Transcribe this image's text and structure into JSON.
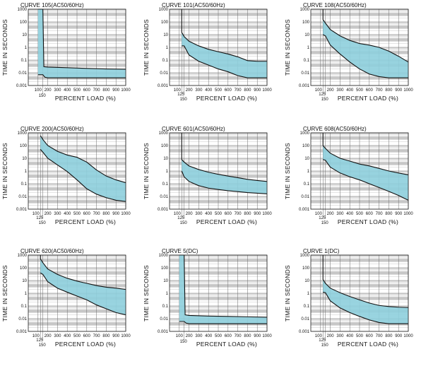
{
  "axes": {
    "ylabel": "TIME  IN  SECONDS",
    "xlabel": "PERCENT   LOAD   (%)",
    "y_ticks": [
      "1000",
      "100",
      "10",
      "1",
      "0.1",
      "0.01",
      "0.001"
    ],
    "x_ticks": [
      "100",
      "200",
      "300",
      "400",
      "500",
      "600",
      "700",
      "800",
      "900",
      "1000"
    ],
    "x_extra_125": "125",
    "x_extra_150": "150"
  },
  "chart_data": [
    {
      "type": "area",
      "title": "CURVE   105(AC50/60Hz)",
      "x_scale": "linear",
      "y_scale": "log",
      "xlim": [
        0,
        1000
      ],
      "ylim": [
        0.001,
        1000
      ],
      "series": [
        {
          "x": [
            100,
            150,
            160,
            200,
            400,
            600,
            800,
            1000
          ],
          "values": [
            1000,
            1000,
            0.03,
            0.028,
            0.025,
            0.022,
            0.02,
            0.019
          ]
        },
        {
          "x": [
            100,
            150,
            170,
            200,
            400,
            600,
            800,
            1000
          ],
          "values": [
            0.007,
            0.007,
            0.0045,
            0.004,
            0.004,
            0.004,
            0.004,
            0.004
          ]
        }
      ],
      "x_ticks_shown": [
        "100",
        "200",
        "300",
        "400",
        "500",
        "600",
        "700",
        "800",
        "900",
        "1000"
      ],
      "x_extra_ticks": [
        "150"
      ]
    },
    {
      "type": "area",
      "title": "CURVE   101(AC50/60Hz)",
      "x_scale": "linear",
      "y_scale": "log",
      "xlim": [
        0,
        1000
      ],
      "ylim": [
        0.001,
        1000
      ],
      "series": [
        {
          "x": [
            125,
            125,
            150,
            200,
            300,
            400,
            500,
            600,
            700,
            800,
            900,
            1000
          ],
          "values": [
            1000,
            15,
            7,
            3,
            1.3,
            0.7,
            0.45,
            0.3,
            0.18,
            0.09,
            0.08,
            0.08
          ]
        },
        {
          "x": [
            125,
            150,
            200,
            300,
            400,
            500,
            600,
            700,
            800,
            900,
            1000
          ],
          "values": [
            1.3,
            1.3,
            0.25,
            0.08,
            0.04,
            0.02,
            0.012,
            0.006,
            0.004,
            0.004,
            0.004
          ]
        }
      ],
      "x_ticks_shown": [
        "100",
        "200",
        "300",
        "400",
        "500",
        "600",
        "700",
        "800",
        "900",
        "1000"
      ],
      "x_extra_ticks": [
        "125",
        "150"
      ]
    },
    {
      "type": "area",
      "title": "CURVE   108(AC50/60Hz)",
      "x_scale": "linear",
      "y_scale": "log",
      "xlim": [
        0,
        1000
      ],
      "ylim": [
        0.001,
        1000
      ],
      "series": [
        {
          "x": [
            125,
            125,
            150,
            200,
            300,
            400,
            500,
            600,
            700,
            800,
            900,
            1000
          ],
          "values": [
            1000,
            150,
            80,
            25,
            8,
            3.5,
            2,
            1.5,
            1,
            0.5,
            0.2,
            0.07
          ]
        },
        {
          "x": [
            125,
            150,
            200,
            300,
            400,
            500,
            600,
            700,
            800,
            900,
            1000
          ],
          "values": [
            10,
            8,
            1.5,
            0.3,
            0.07,
            0.02,
            0.008,
            0.005,
            0.004,
            0.004,
            0.004
          ]
        }
      ],
      "x_ticks_shown": [
        "100",
        "200",
        "300",
        "400",
        "500",
        "600",
        "700",
        "800",
        "900",
        "1000"
      ],
      "x_extra_ticks": [
        "125",
        "150"
      ]
    },
    {
      "type": "area",
      "title": "CURVE   200(AC50/60Hz)",
      "x_scale": "linear",
      "y_scale": "log",
      "xlim": [
        0,
        1000
      ],
      "ylim": [
        0.001,
        1000
      ],
      "series": [
        {
          "x": [
            125,
            150,
            200,
            300,
            400,
            500,
            600,
            700,
            800,
            900,
            1000
          ],
          "values": [
            600,
            300,
            100,
            35,
            18,
            12,
            5,
            1.2,
            0.4,
            0.2,
            0.12
          ]
        },
        {
          "x": [
            125,
            150,
            200,
            300,
            400,
            500,
            600,
            700,
            800,
            900,
            1000
          ],
          "values": [
            50,
            30,
            10,
            3,
            0.9,
            0.2,
            0.04,
            0.015,
            0.008,
            0.005,
            0.004
          ]
        }
      ],
      "x_ticks_shown": [
        "100",
        "200",
        "300",
        "400",
        "500",
        "600",
        "700",
        "800",
        "900",
        "1000"
      ],
      "x_extra_ticks": [
        "125",
        "150"
      ]
    },
    {
      "type": "area",
      "title": "CURVE   601(AC50/60Hz)",
      "x_scale": "linear",
      "y_scale": "log",
      "xlim": [
        0,
        1000
      ],
      "ylim": [
        0.001,
        1000
      ],
      "series": [
        {
          "x": [
            125,
            125,
            150,
            200,
            300,
            400,
            500,
            600,
            700,
            800,
            900,
            1000
          ],
          "values": [
            1000,
            8,
            5,
            2.5,
            1.3,
            0.8,
            0.55,
            0.4,
            0.3,
            0.22,
            0.18,
            0.15
          ]
        },
        {
          "x": [
            125,
            150,
            200,
            300,
            400,
            500,
            600,
            700,
            800,
            900,
            1000
          ],
          "values": [
            1,
            0.35,
            0.15,
            0.07,
            0.045,
            0.035,
            0.028,
            0.024,
            0.02,
            0.018,
            0.016
          ]
        }
      ],
      "x_ticks_shown": [
        "100",
        "200",
        "300",
        "400",
        "500",
        "600",
        "700",
        "800",
        "900",
        "1000"
      ],
      "x_extra_ticks": [
        "125",
        "150"
      ]
    },
    {
      "type": "area",
      "title": "CURVE   608(AC50/60Hz)",
      "x_scale": "linear",
      "y_scale": "log",
      "xlim": [
        0,
        1000
      ],
      "ylim": [
        0.001,
        1000
      ],
      "series": [
        {
          "x": [
            125,
            125,
            150,
            200,
            300,
            400,
            500,
            600,
            700,
            800,
            900,
            1000
          ],
          "values": [
            1000,
            100,
            60,
            25,
            10,
            6,
            3.5,
            2.5,
            1.6,
            1,
            0.7,
            0.5
          ]
        },
        {
          "x": [
            125,
            150,
            200,
            300,
            400,
            500,
            600,
            700,
            800,
            900,
            1000
          ],
          "values": [
            8,
            7,
            2,
            0.7,
            0.35,
            0.2,
            0.1,
            0.05,
            0.025,
            0.012,
            0.005
          ]
        }
      ],
      "x_ticks_shown": [
        "100",
        "200",
        "300",
        "400",
        "500",
        "600",
        "700",
        "800",
        "900",
        "1000"
      ],
      "x_extra_ticks": [
        "125",
        "150"
      ]
    },
    {
      "type": "area",
      "title": "CURVE   620(AC50/60Hz)",
      "x_scale": "linear",
      "y_scale": "log",
      "xlim": [
        0,
        1000
      ],
      "ylim": [
        0.001,
        1000
      ],
      "series": [
        {
          "x": [
            125,
            125,
            150,
            200,
            300,
            400,
            500,
            600,
            700,
            800,
            900,
            1000
          ],
          "values": [
            1000,
            500,
            250,
            80,
            30,
            15,
            9,
            6,
            4,
            3,
            2.5,
            2
          ]
        },
        {
          "x": [
            125,
            150,
            200,
            300,
            400,
            500,
            600,
            700,
            800,
            900,
            1000
          ],
          "values": [
            40,
            30,
            8,
            2.5,
            1.2,
            0.6,
            0.3,
            0.12,
            0.06,
            0.03,
            0.02
          ]
        }
      ],
      "x_ticks_shown": [
        "100",
        "200",
        "300",
        "400",
        "500",
        "600",
        "700",
        "800",
        "900",
        "1000"
      ],
      "x_extra_ticks": [
        "125",
        "150"
      ]
    },
    {
      "type": "area",
      "title": "CURVE   5(DC)",
      "x_scale": "linear",
      "y_scale": "log",
      "xlim": [
        0,
        1000
      ],
      "ylim": [
        0.001,
        1000
      ],
      "series": [
        {
          "x": [
            100,
            150,
            160,
            200,
            400,
            600,
            800,
            1000
          ],
          "values": [
            1000,
            1000,
            0.02,
            0.018,
            0.016,
            0.015,
            0.014,
            0.013
          ]
        },
        {
          "x": [
            100,
            150,
            170,
            200,
            400,
            600,
            800,
            1000
          ],
          "values": [
            0.006,
            0.006,
            0.0045,
            0.004,
            0.004,
            0.004,
            0.004,
            0.004
          ]
        }
      ],
      "x_ticks_shown": [
        "100",
        "200",
        "300",
        "400",
        "500",
        "600",
        "700",
        "800",
        "900",
        "1000"
      ],
      "x_extra_ticks": [
        "150"
      ]
    },
    {
      "type": "area",
      "title": "CURVE   1(DC)",
      "x_scale": "linear",
      "y_scale": "log",
      "xlim": [
        0,
        1000
      ],
      "ylim": [
        0.001,
        1000
      ],
      "series": [
        {
          "x": [
            125,
            125,
            150,
            200,
            300,
            400,
            500,
            600,
            700,
            800,
            900,
            1000
          ],
          "values": [
            1000,
            12,
            6,
            2.5,
            1.1,
            0.55,
            0.3,
            0.17,
            0.11,
            0.09,
            0.08,
            0.075
          ]
        },
        {
          "x": [
            125,
            150,
            200,
            300,
            400,
            500,
            600,
            700,
            800,
            900,
            1000
          ],
          "values": [
            1.2,
            1.1,
            0.25,
            0.07,
            0.03,
            0.015,
            0.008,
            0.005,
            0.004,
            0.004,
            0.004
          ]
        }
      ],
      "x_ticks_shown": [
        "100",
        "200",
        "300",
        "400",
        "500",
        "600",
        "700",
        "800",
        "900",
        "1000"
      ],
      "x_extra_ticks": [
        "125",
        "150"
      ]
    }
  ],
  "colors": {
    "band_fill": "#8ecfdd",
    "band_stroke": "#111111",
    "grid_major": "#6b6b6b",
    "grid_minor": "#bdbdbd",
    "shade_band": "#c9c9c9",
    "frame": "#222222"
  }
}
